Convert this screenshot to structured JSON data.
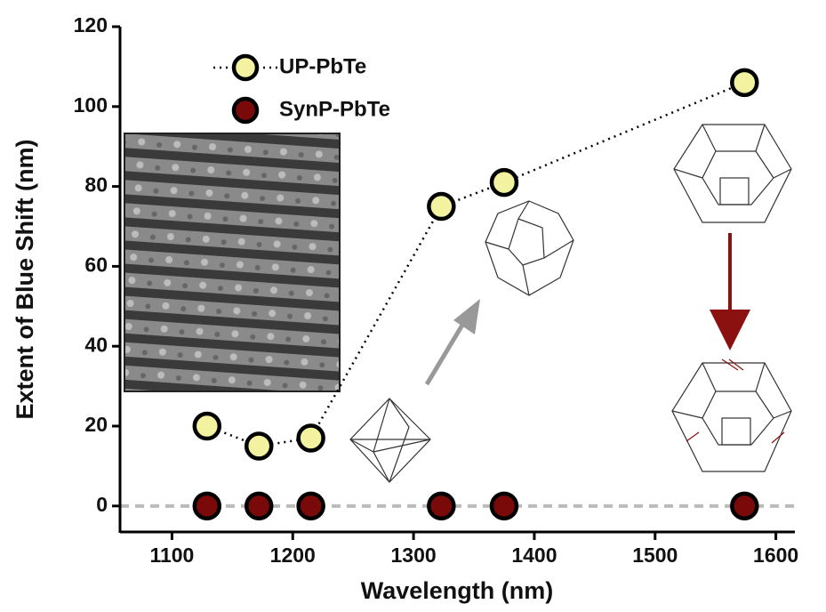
{
  "chart_data": {
    "type": "scatter",
    "xlabel": "Wavelength (nm)",
    "ylabel": "Extent of Blue Shift (nm)",
    "xlim": [
      1057,
      1615
    ],
    "ylim": [
      -6.5,
      120
    ],
    "xticks": [
      1100,
      1200,
      1300,
      1400,
      1500,
      1600
    ],
    "yticks": [
      0,
      20,
      40,
      60,
      80,
      100,
      120
    ],
    "reference_line_y": 0,
    "series": [
      {
        "name": "UP-PbTe",
        "color": "#f2f2a0",
        "linestyle": "dotted",
        "x": [
          1129,
          1172,
          1215,
          1323,
          1375,
          1574
        ],
        "values": [
          20,
          15,
          17,
          75,
          81,
          106
        ]
      },
      {
        "name": "SynP-PbTe",
        "color": "#7a0a0a",
        "linestyle": "none",
        "x": [
          1129,
          1172,
          1215,
          1323,
          1375,
          1574
        ],
        "values": [
          0,
          0,
          0,
          0,
          0,
          0
        ]
      }
    ]
  }
}
